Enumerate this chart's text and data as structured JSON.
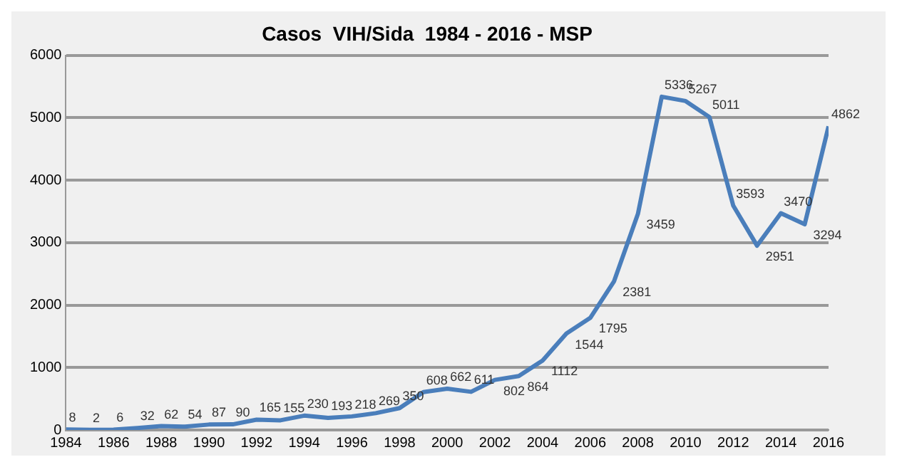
{
  "chart_data": {
    "type": "line",
    "title": "Casos  VIH/Sida  1984 - 2016 - MSP",
    "x": [
      1984,
      1985,
      1986,
      1987,
      1988,
      1989,
      1990,
      1991,
      1992,
      1993,
      1994,
      1995,
      1996,
      1997,
      1998,
      1999,
      2000,
      2001,
      2002,
      2003,
      2004,
      2005,
      2006,
      2007,
      2008,
      2009,
      2010,
      2011,
      2012,
      2013,
      2014,
      2015,
      2016
    ],
    "series": [
      {
        "color": "#4a7ebb",
        "values": [
          8,
          2,
          6,
          32,
          62,
          54,
          87,
          90,
          165,
          155,
          230,
          193,
          218,
          269,
          350,
          608,
          662,
          611,
          802,
          864,
          1112,
          1544,
          1795,
          2381,
          3459,
          5336,
          5267,
          5011,
          3593,
          2951,
          3470,
          3294,
          4862
        ]
      }
    ],
    "xlim": [
      1984,
      2016
    ],
    "xticks": [
      1984,
      1986,
      1988,
      1990,
      1992,
      1994,
      1996,
      1998,
      2000,
      2002,
      2004,
      2006,
      2008,
      2010,
      2012,
      2014,
      2016
    ],
    "ylim": [
      0,
      6000
    ],
    "yticks": [
      0,
      1000,
      2000,
      3000,
      4000,
      5000,
      6000
    ],
    "grid": "y",
    "legend": false,
    "marker": "none",
    "line_style": "solid",
    "data_labels": true
  }
}
